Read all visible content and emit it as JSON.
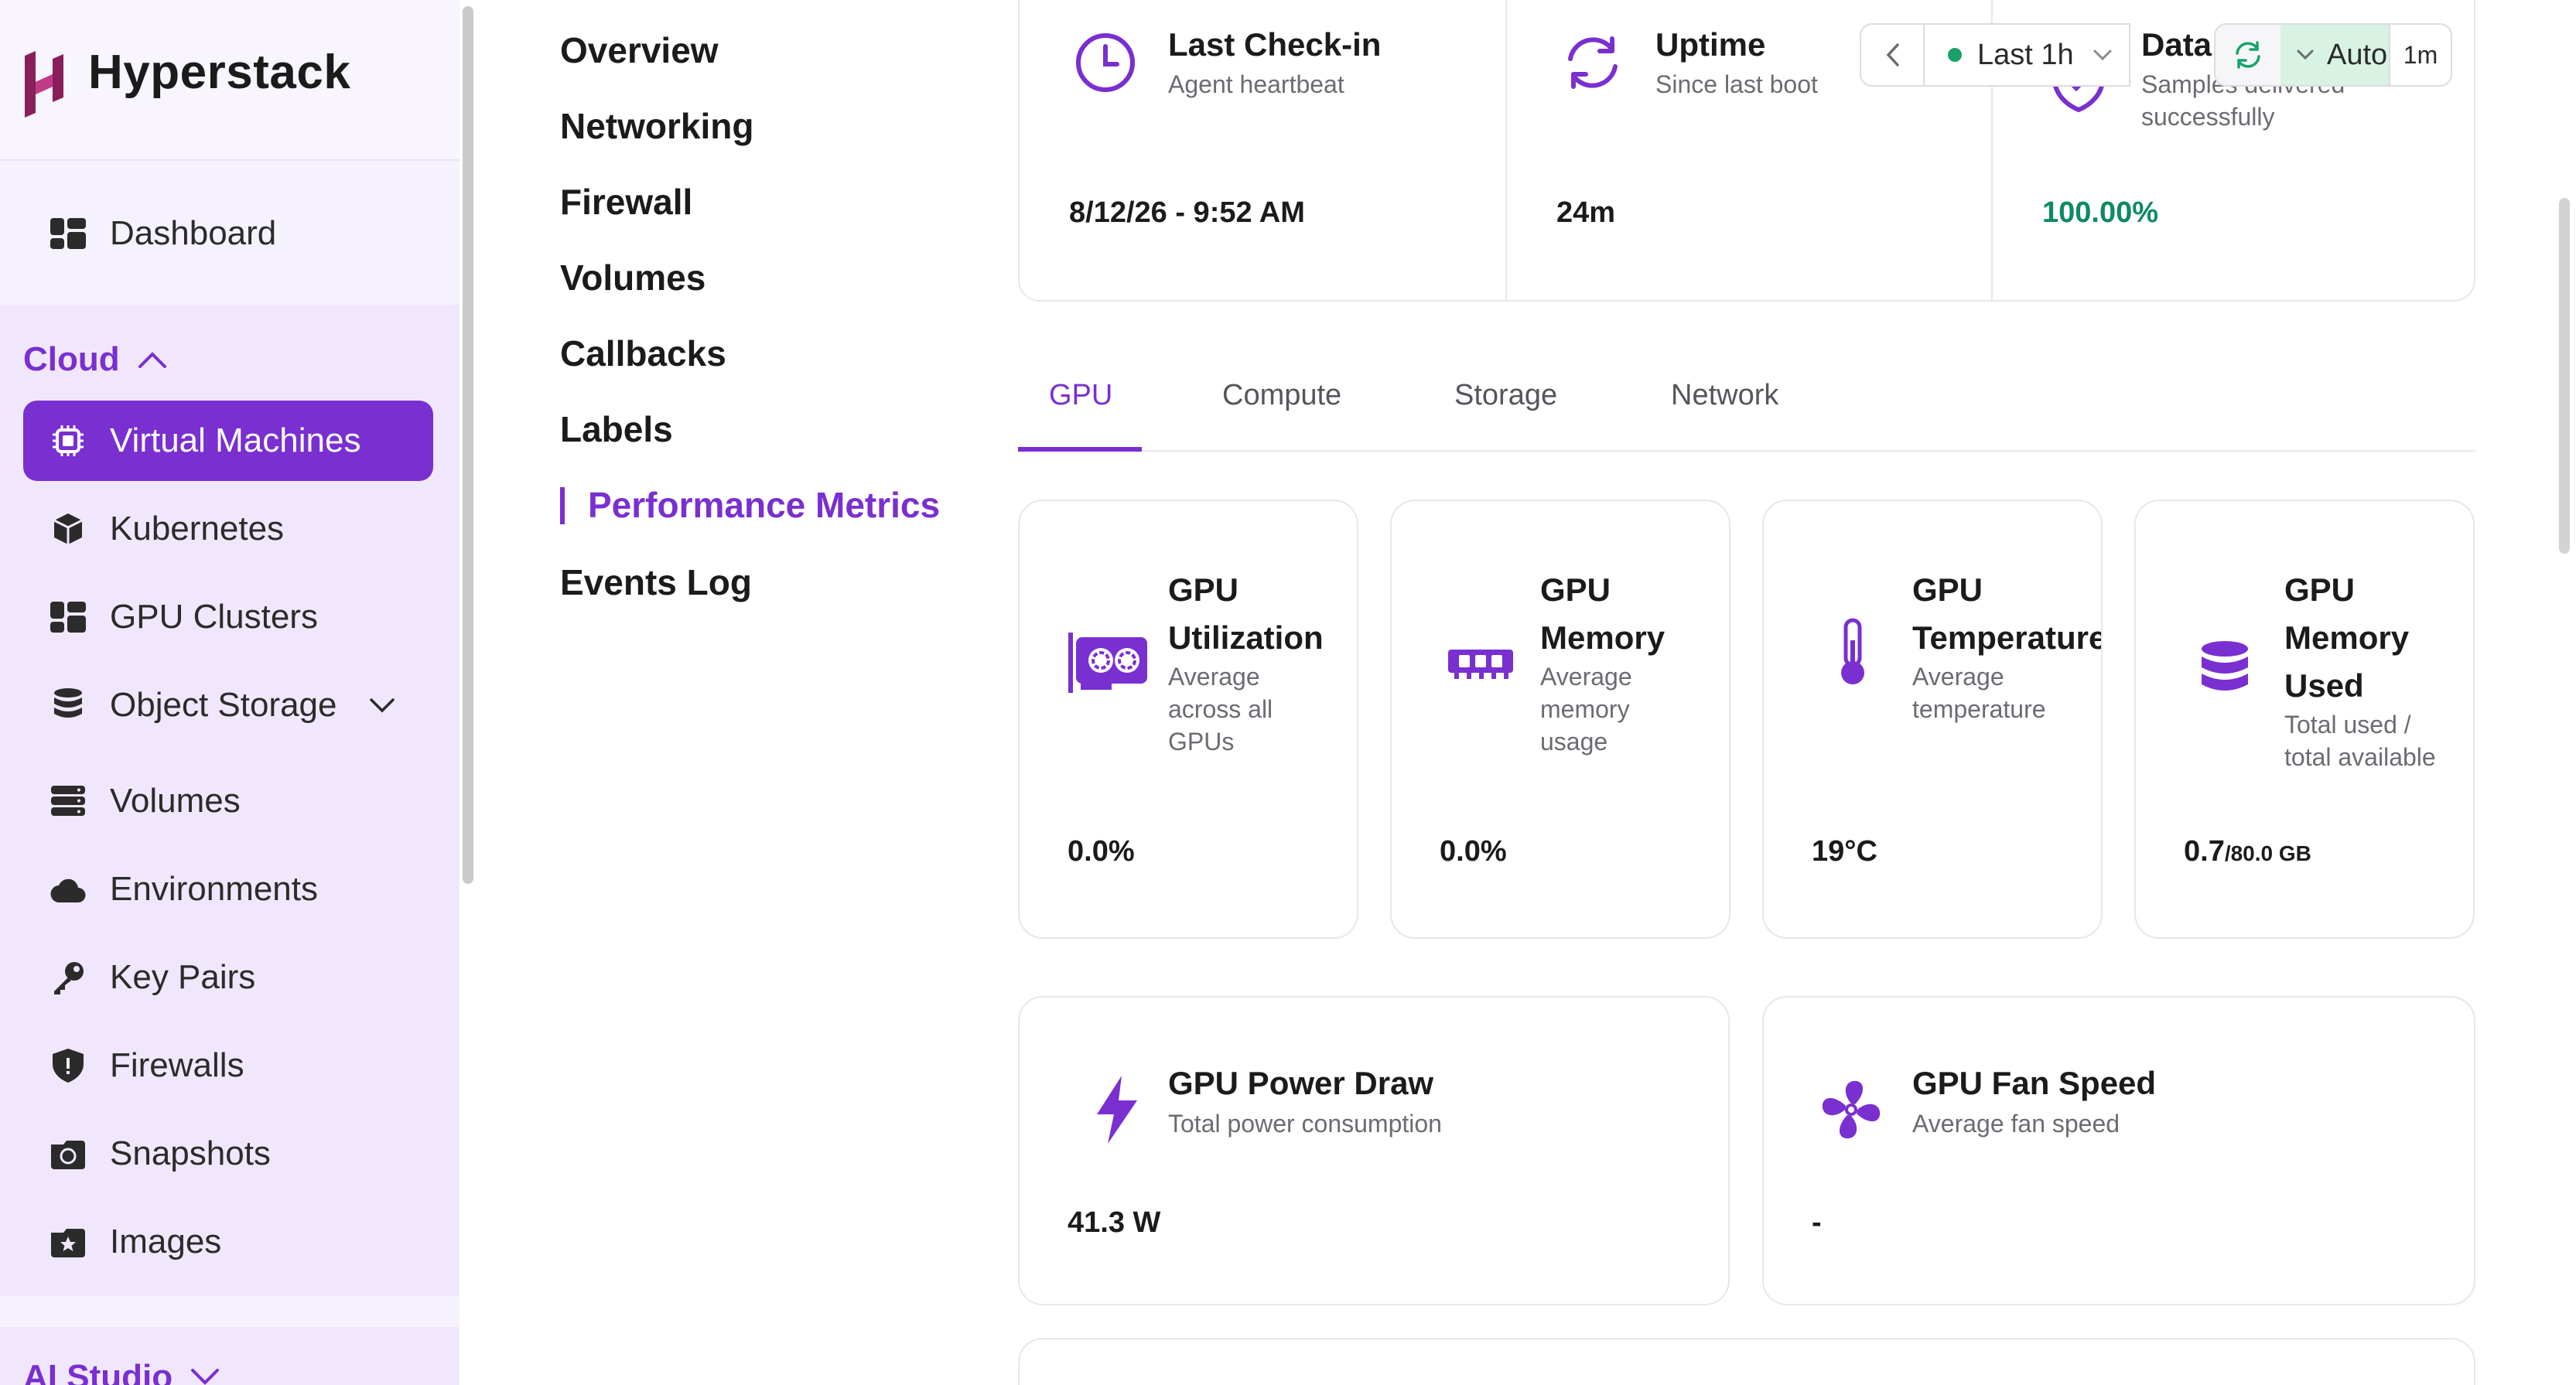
{
  "brand": {
    "name": "Hyperstack"
  },
  "sidebar": {
    "dashboard": "Dashboard",
    "cloud_group": "Cloud",
    "items": [
      {
        "label": "Virtual Machines",
        "icon": "chip-icon"
      },
      {
        "label": "Kubernetes",
        "icon": "cube-icon"
      },
      {
        "label": "GPU Clusters",
        "icon": "grid-icon"
      },
      {
        "label": "Object Storage",
        "icon": "database-icon"
      },
      {
        "label": "Volumes",
        "icon": "server-icon"
      },
      {
        "label": "Environments",
        "icon": "cloud-icon"
      },
      {
        "label": "Key Pairs",
        "icon": "key-icon"
      },
      {
        "label": "Firewalls",
        "icon": "shield-icon"
      },
      {
        "label": "Snapshots",
        "icon": "camera-icon"
      },
      {
        "label": "Images",
        "icon": "star-image-icon"
      }
    ],
    "ai_group": "AI Studio"
  },
  "subnav": {
    "items": [
      "Overview",
      "Networking",
      "Firewall",
      "Volumes",
      "Callbacks",
      "Labels",
      "Performance Metrics",
      "Events Log"
    ],
    "active": "Performance Metrics"
  },
  "stats": {
    "checkin": {
      "title": "Last Check-in",
      "sub": "Agent heartbeat",
      "value": "8/12/26 - 9:52 AM"
    },
    "uptime": {
      "title": "Uptime",
      "sub": "Since last boot",
      "value": "24m"
    },
    "data": {
      "title": "Data",
      "sub": "Samples delivered successfully",
      "value": "100.00%"
    }
  },
  "timebar": {
    "range": "Last 1h",
    "auto": "Auto",
    "interval": "1m"
  },
  "tabs": [
    "GPU",
    "Compute",
    "Storage",
    "Network"
  ],
  "metrics": {
    "gpu_util": {
      "title_1": "GPU",
      "title_2": "Utilization",
      "sub": "Average across all GPUs",
      "value": "0.0%"
    },
    "gpu_mem": {
      "title_1": "GPU",
      "title_2": "Memory",
      "sub": "Average memory usage",
      "value": "0.0%"
    },
    "gpu_temp": {
      "title_1": "GPU",
      "title_2": "Temperature",
      "sub": "Average temperature",
      "value": "19°C"
    },
    "gpu_mem_used": {
      "title_1": "GPU",
      "title_2": "Memory",
      "title_3": "Used",
      "sub": "Total used / total available",
      "value": "0.7",
      "unit": "/80.0 GB"
    },
    "gpu_power": {
      "title": "GPU Power Draw",
      "sub": "Total power consumption",
      "value": "41.3 W"
    },
    "gpu_fan": {
      "title": "GPU Fan Speed",
      "sub": "Average fan speed",
      "value": "-"
    }
  },
  "colors": {
    "accent": "#7a2fd0",
    "success": "#0f8a5f",
    "live_dot": "#19a36b"
  }
}
